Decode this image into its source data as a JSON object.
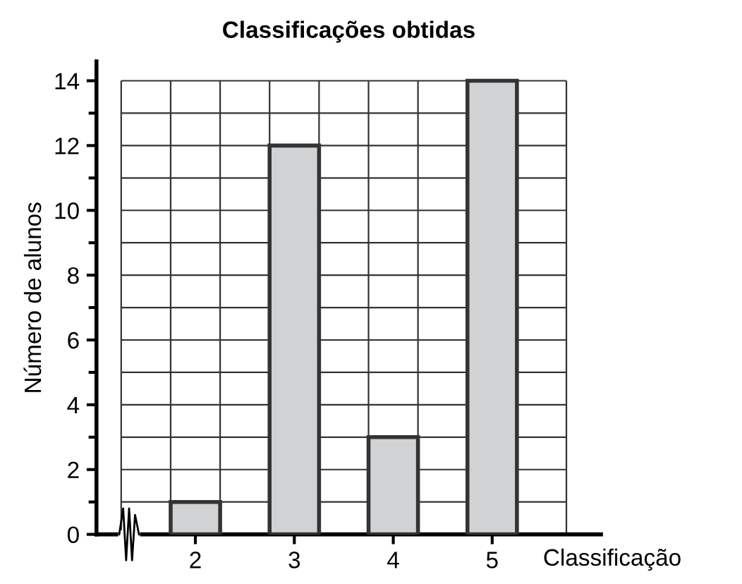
{
  "chart_data": {
    "type": "bar",
    "title": "Classificações obtidas",
    "xlabel": "Classificação",
    "ylabel": "Número de alunos",
    "categories": [
      "2",
      "3",
      "4",
      "5"
    ],
    "values": [
      1,
      12,
      3,
      14
    ],
    "color": "#d1d2d4",
    "ylim": [
      0,
      14.6
    ],
    "yticks": [
      0,
      2,
      4,
      6,
      8,
      10,
      12,
      14
    ],
    "grid": true
  }
}
